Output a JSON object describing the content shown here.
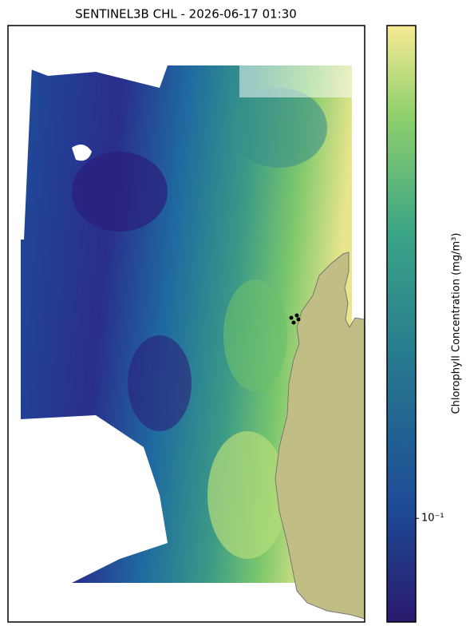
{
  "chart_data": {
    "type": "map",
    "title": "SENTINEL3B CHL - 2026-06-17 01:30",
    "colorbar": {
      "label": "Chlorophyll Concentration (mg/m³)",
      "log": true,
      "clim": [
        0.05,
        2.7
      ],
      "ticks": [
        {
          "value": 0.1,
          "label": "10⁻¹"
        }
      ]
    }
  }
}
